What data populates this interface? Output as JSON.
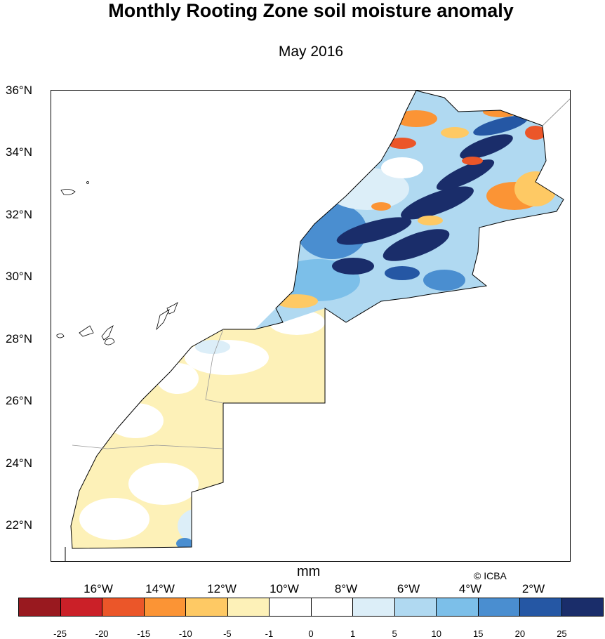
{
  "title": "Monthly Rooting Zone soil moisture anomaly",
  "subtitle": "May 2016",
  "units": "mm",
  "credit": "© ICBA",
  "lat_labels": [
    "36°N",
    "34°N",
    "32°N",
    "30°N",
    "28°N",
    "26°N",
    "24°N",
    "22°N"
  ],
  "lon_labels": [
    "16°W",
    "14°W",
    "12°W",
    "10°W",
    "8°W",
    "6°W",
    "4°W",
    "2°W"
  ],
  "colorbar": {
    "colors": [
      "#99191f",
      "#cb2028",
      "#eb5629",
      "#fb9435",
      "#fec964",
      "#fdf1b8",
      "#ffffff",
      "#ffffff",
      "#dceef8",
      "#b0d9f1",
      "#7cbfe9",
      "#4a8ed0",
      "#2557a4",
      "#1a2d6a"
    ],
    "labels": [
      "-25",
      "-20",
      "-15",
      "-10",
      "-5",
      "-1",
      "0",
      "1",
      "5",
      "10",
      "15",
      "20",
      "25"
    ]
  }
}
